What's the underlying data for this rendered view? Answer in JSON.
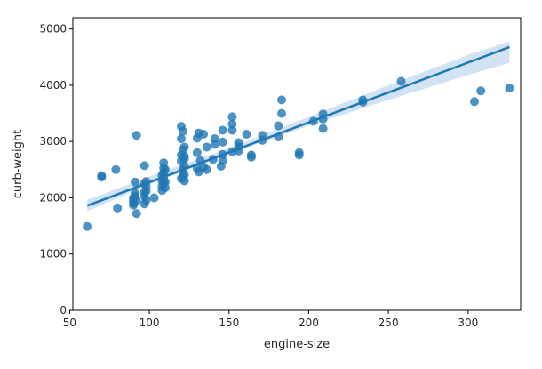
{
  "chart_data": {
    "type": "scatter",
    "title": "",
    "xlabel": "engine-size",
    "ylabel": "curb-weight",
    "xlim": [
      52,
      333
    ],
    "ylim": [
      0,
      5200
    ],
    "xticks": [
      50,
      100,
      150,
      200,
      250,
      300
    ],
    "yticks": [
      0,
      1000,
      2000,
      3000,
      4000,
      5000
    ],
    "grid": false,
    "legend": "none",
    "colors": {
      "points": "#1f77b4",
      "regression_line": "#1f77b4",
      "confidence_band": "#c6dbef"
    },
    "regression": {
      "x": [
        61,
        326
      ],
      "y": [
        1860,
        4680
      ],
      "ci_x": [
        61,
        100,
        150,
        200,
        250,
        300,
        326
      ],
      "ci_low": [
        1760,
        2240,
        2780,
        3280,
        3740,
        4180,
        4400
      ],
      "ci_high": [
        1960,
        2380,
        2880,
        3440,
        4000,
        4540,
        4780
      ]
    },
    "points": [
      {
        "x": 61,
        "y": 1490
      },
      {
        "x": 70,
        "y": 2370
      },
      {
        "x": 70,
        "y": 2390
      },
      {
        "x": 79,
        "y": 2500
      },
      {
        "x": 80,
        "y": 1820
      },
      {
        "x": 90,
        "y": 1870
      },
      {
        "x": 90,
        "y": 1900
      },
      {
        "x": 90,
        "y": 1940
      },
      {
        "x": 90,
        "y": 1970
      },
      {
        "x": 90,
        "y": 2000
      },
      {
        "x": 91,
        "y": 2030
      },
      {
        "x": 91,
        "y": 2080
      },
      {
        "x": 91,
        "y": 2280
      },
      {
        "x": 92,
        "y": 1720
      },
      {
        "x": 92,
        "y": 1950
      },
      {
        "x": 92,
        "y": 3110
      },
      {
        "x": 97,
        "y": 1890
      },
      {
        "x": 97,
        "y": 2030
      },
      {
        "x": 97,
        "y": 2100
      },
      {
        "x": 97,
        "y": 2250
      },
      {
        "x": 97,
        "y": 2570
      },
      {
        "x": 98,
        "y": 1960
      },
      {
        "x": 98,
        "y": 2120
      },
      {
        "x": 98,
        "y": 2200
      },
      {
        "x": 98,
        "y": 2290
      },
      {
        "x": 103,
        "y": 2000
      },
      {
        "x": 108,
        "y": 2130
      },
      {
        "x": 108,
        "y": 2200
      },
      {
        "x": 108,
        "y": 2300
      },
      {
        "x": 108,
        "y": 2400
      },
      {
        "x": 109,
        "y": 2260
      },
      {
        "x": 109,
        "y": 2350
      },
      {
        "x": 109,
        "y": 2450
      },
      {
        "x": 109,
        "y": 2530
      },
      {
        "x": 109,
        "y": 2620
      },
      {
        "x": 110,
        "y": 2180
      },
      {
        "x": 110,
        "y": 2280
      },
      {
        "x": 110,
        "y": 2500
      },
      {
        "x": 120,
        "y": 2340
      },
      {
        "x": 120,
        "y": 2650
      },
      {
        "x": 120,
        "y": 2760
      },
      {
        "x": 120,
        "y": 3050
      },
      {
        "x": 120,
        "y": 3270
      },
      {
        "x": 121,
        "y": 2380
      },
      {
        "x": 121,
        "y": 2500
      },
      {
        "x": 121,
        "y": 2850
      },
      {
        "x": 121,
        "y": 3180
      },
      {
        "x": 122,
        "y": 2300
      },
      {
        "x": 122,
        "y": 2410
      },
      {
        "x": 122,
        "y": 2560
      },
      {
        "x": 122,
        "y": 2690
      },
      {
        "x": 122,
        "y": 2740
      },
      {
        "x": 122,
        "y": 2900
      },
      {
        "x": 130,
        "y": 2520
      },
      {
        "x": 130,
        "y": 2800
      },
      {
        "x": 130,
        "y": 3060
      },
      {
        "x": 131,
        "y": 2460
      },
      {
        "x": 131,
        "y": 3150
      },
      {
        "x": 132,
        "y": 2660
      },
      {
        "x": 134,
        "y": 2550
      },
      {
        "x": 134,
        "y": 3130
      },
      {
        "x": 136,
        "y": 2500
      },
      {
        "x": 136,
        "y": 2900
      },
      {
        "x": 140,
        "y": 2680
      },
      {
        "x": 141,
        "y": 2950
      },
      {
        "x": 141,
        "y": 3050
      },
      {
        "x": 145,
        "y": 2560
      },
      {
        "x": 146,
        "y": 2660
      },
      {
        "x": 146,
        "y": 2770
      },
      {
        "x": 146,
        "y": 2990
      },
      {
        "x": 146,
        "y": 3200
      },
      {
        "x": 152,
        "y": 2820
      },
      {
        "x": 152,
        "y": 3200
      },
      {
        "x": 152,
        "y": 3310
      },
      {
        "x": 152,
        "y": 3440
      },
      {
        "x": 156,
        "y": 2830
      },
      {
        "x": 156,
        "y": 2910
      },
      {
        "x": 156,
        "y": 2980
      },
      {
        "x": 161,
        "y": 3130
      },
      {
        "x": 164,
        "y": 2720
      },
      {
        "x": 164,
        "y": 2760
      },
      {
        "x": 171,
        "y": 3020
      },
      {
        "x": 171,
        "y": 3110
      },
      {
        "x": 181,
        "y": 3080
      },
      {
        "x": 181,
        "y": 3280
      },
      {
        "x": 183,
        "y": 3500
      },
      {
        "x": 183,
        "y": 3740
      },
      {
        "x": 194,
        "y": 2760
      },
      {
        "x": 194,
        "y": 2800
      },
      {
        "x": 203,
        "y": 3360
      },
      {
        "x": 209,
        "y": 3230
      },
      {
        "x": 209,
        "y": 3400
      },
      {
        "x": 209,
        "y": 3490
      },
      {
        "x": 234,
        "y": 3700
      },
      {
        "x": 234,
        "y": 3740
      },
      {
        "x": 258,
        "y": 4070
      },
      {
        "x": 304,
        "y": 3710
      },
      {
        "x": 308,
        "y": 3900
      },
      {
        "x": 326,
        "y": 3950
      }
    ]
  }
}
